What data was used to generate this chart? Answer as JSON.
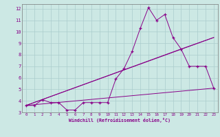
{
  "xlabel": "Windchill (Refroidissement éolien,°C)",
  "bg_color": "#cce8e4",
  "grid_color": "#aacccc",
  "line_color": "#880088",
  "xlim": [
    -0.5,
    23.5
  ],
  "ylim": [
    3.0,
    12.4
  ],
  "xticks": [
    0,
    1,
    2,
    3,
    4,
    5,
    6,
    7,
    8,
    9,
    10,
    11,
    12,
    13,
    14,
    15,
    16,
    17,
    18,
    19,
    20,
    21,
    22,
    23
  ],
  "yticks": [
    3,
    4,
    5,
    6,
    7,
    8,
    9,
    10,
    11,
    12
  ],
  "series1_x": [
    0,
    1,
    2,
    3,
    4,
    5,
    6,
    7,
    8,
    9,
    10,
    11,
    12,
    13,
    14,
    15,
    16,
    17,
    18,
    19,
    20,
    21,
    22,
    23
  ],
  "series1_y": [
    3.6,
    3.6,
    4.1,
    3.85,
    3.85,
    3.2,
    3.2,
    3.85,
    3.85,
    3.85,
    3.85,
    5.9,
    6.8,
    8.3,
    10.3,
    12.1,
    11.0,
    11.5,
    9.5,
    8.5,
    7.0,
    7.0,
    7.0,
    5.1
  ],
  "series2_x": [
    0,
    23
  ],
  "series2_y": [
    3.6,
    5.1
  ],
  "series3_x": [
    0,
    19,
    23
  ],
  "series3_y": [
    3.6,
    8.5,
    9.5
  ],
  "series4_x": [
    0,
    23
  ],
  "series4_y": [
    3.6,
    9.5
  ]
}
